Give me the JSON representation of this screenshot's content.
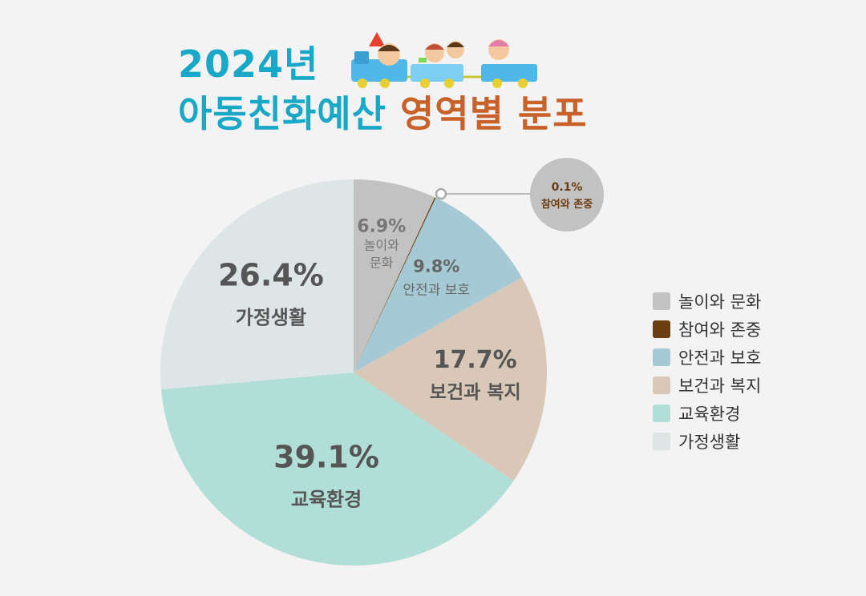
{
  "title": {
    "line1": "2024년",
    "line2_main": "아동친화예산",
    "line2_accent": "영역별 분포"
  },
  "chart_data": {
    "type": "pie",
    "title": "2024년 아동친화예산 영역별 분포",
    "unit": "%",
    "legend_position": "right",
    "slices": [
      {
        "label": "놀이와 문화",
        "chart_label": "놀이와\n문화",
        "value": 6.9,
        "display": "6.9%",
        "color": "#c2c2c2"
      },
      {
        "label": "참여와 존중",
        "chart_label": "참여와 존중",
        "value": 0.1,
        "display": "0.1%",
        "color": "#6b3d12"
      },
      {
        "label": "안전과 보호",
        "chart_label": "안전과 보호",
        "value": 9.8,
        "display": "9.8%",
        "color": "#a6cad5"
      },
      {
        "label": "보건과 복지",
        "chart_label": "보건과 복지",
        "value": 17.7,
        "display": "17.7%",
        "color": "#d9c7b8"
      },
      {
        "label": "교육환경",
        "chart_label": "교육환경",
        "value": 39.1,
        "display": "39.1%",
        "color": "#b2ded8"
      },
      {
        "label": "가정생활",
        "chart_label": "가정생활",
        "value": 26.4,
        "display": "26.4%",
        "color": "#dde5e6"
      }
    ]
  }
}
